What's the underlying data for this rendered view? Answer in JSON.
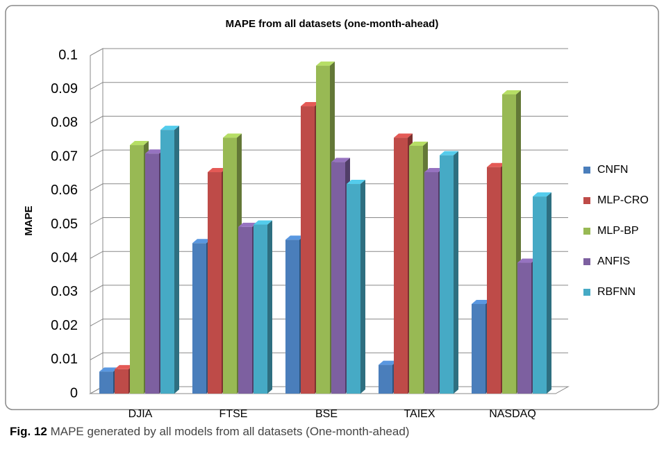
{
  "chart_data": {
    "type": "bar",
    "title": "MAPE from all datasets (one-month-ahead)",
    "y_label": "MAPE",
    "categories": [
      "DJIA",
      "FTSE",
      "BSE",
      "TAIEX",
      "NASDAQ"
    ],
    "series": [
      {
        "name": "CNFN",
        "color": "#4a7ebb",
        "values": [
          0.0065,
          0.0445,
          0.0455,
          0.0085,
          0.0265
        ]
      },
      {
        "name": "MLP-CRO",
        "color": "#be4b48",
        "values": [
          0.0072,
          0.0655,
          0.085,
          0.0757,
          0.067
        ]
      },
      {
        "name": "MLP-BP",
        "color": "#98b954",
        "values": [
          0.0735,
          0.0757,
          0.097,
          0.0733,
          0.0885
        ]
      },
      {
        "name": "ANFIS",
        "color": "#7d60a0",
        "values": [
          0.071,
          0.0493,
          0.0685,
          0.0655,
          0.0387
        ]
      },
      {
        "name": "RBFNN",
        "color": "#46aac5",
        "values": [
          0.078,
          0.05,
          0.062,
          0.0705,
          0.0583
        ]
      }
    ],
    "ylim": [
      0,
      0.1
    ],
    "yticks": [
      0,
      0.01,
      0.02,
      0.03,
      0.04,
      0.05,
      0.06,
      0.07,
      0.08,
      0.09,
      0.1
    ],
    "grid": true,
    "legend": "right"
  },
  "caption": {
    "label": "Fig. 12",
    "text": "MAPE generated by all models from all datasets (One-month-ahead)"
  }
}
